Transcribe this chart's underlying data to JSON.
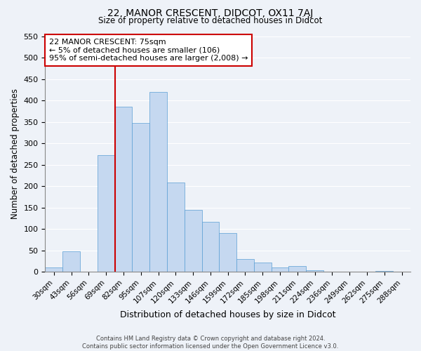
{
  "title": "22, MANOR CRESCENT, DIDCOT, OX11 7AJ",
  "subtitle": "Size of property relative to detached houses in Didcot",
  "xlabel": "Distribution of detached houses by size in Didcot",
  "ylabel": "Number of detached properties",
  "categories": [
    "30sqm",
    "43sqm",
    "56sqm",
    "69sqm",
    "82sqm",
    "95sqm",
    "107sqm",
    "120sqm",
    "133sqm",
    "146sqm",
    "159sqm",
    "172sqm",
    "185sqm",
    "198sqm",
    "211sqm",
    "224sqm",
    "236sqm",
    "249sqm",
    "262sqm",
    "275sqm",
    "288sqm"
  ],
  "values": [
    10,
    48,
    0,
    272,
    385,
    348,
    420,
    208,
    144,
    117,
    90,
    30,
    21,
    10,
    13,
    4,
    0,
    0,
    0,
    2,
    0
  ],
  "bar_color": "#c5d8f0",
  "bar_edge_color": "#5a9fd4",
  "annotation_line1": "22 MANOR CRESCENT: 75sqm",
  "annotation_line2": "← 5% of detached houses are smaller (106)",
  "annotation_line3": "95% of semi-detached houses are larger (2,008) →",
  "annotation_box_color": "#ffffff",
  "annotation_box_edge_color": "#cc0000",
  "vline_color": "#cc0000",
  "vline_x": 3.5,
  "ylim": [
    0,
    550
  ],
  "yticks": [
    0,
    50,
    100,
    150,
    200,
    250,
    300,
    350,
    400,
    450,
    500,
    550
  ],
  "footer_line1": "Contains HM Land Registry data © Crown copyright and database right 2024.",
  "footer_line2": "Contains public sector information licensed under the Open Government Licence v3.0.",
  "background_color": "#eef2f8",
  "grid_color": "#ffffff"
}
